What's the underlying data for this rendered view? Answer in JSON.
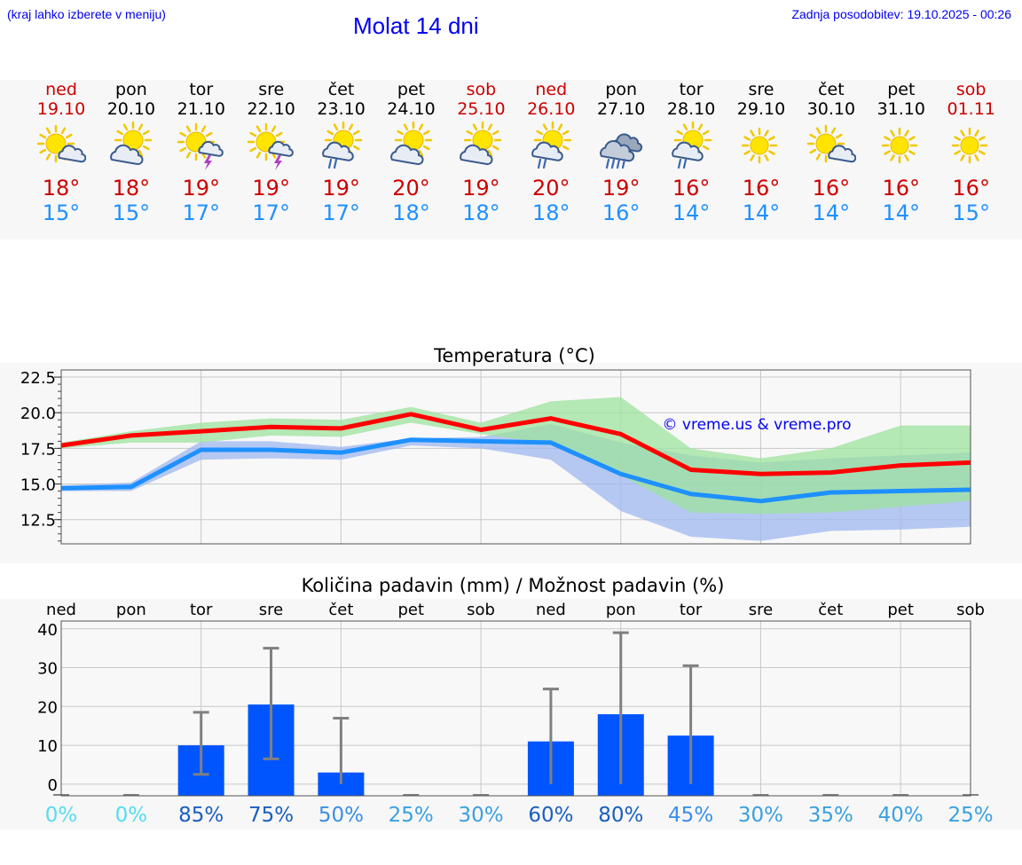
{
  "header": {
    "menu_hint": "(kraj lahko izberete v meniju)",
    "title": "Molat 14 dni",
    "last_update": "Zadnja posodobitev: 19.10.2025 - 00:26"
  },
  "colors": {
    "weekend": "#cc0000",
    "tmax": "#ff0000",
    "tmin": "#1e90ff",
    "precip_bar": "#0055ff",
    "band_green": "#9ee39e",
    "band_blue": "#9fb8f0"
  },
  "days": [
    {
      "name": "ned",
      "date": "19.10",
      "weekend": true,
      "icon": "sun-cloud-icon",
      "tmax": "18°",
      "tmin": "15°"
    },
    {
      "name": "pon",
      "date": "20.10",
      "weekend": false,
      "icon": "cloud-sun-icon",
      "tmax": "18°",
      "tmin": "15°"
    },
    {
      "name": "tor",
      "date": "21.10",
      "weekend": false,
      "icon": "sun-thunder-icon",
      "tmax": "19°",
      "tmin": "17°"
    },
    {
      "name": "sre",
      "date": "22.10",
      "weekend": false,
      "icon": "sun-thunder-icon",
      "tmax": "19°",
      "tmin": "17°"
    },
    {
      "name": "čet",
      "date": "23.10",
      "weekend": false,
      "icon": "sun-rain-icon",
      "tmax": "19°",
      "tmin": "17°"
    },
    {
      "name": "pet",
      "date": "24.10",
      "weekend": false,
      "icon": "cloud-sun-icon",
      "tmax": "20°",
      "tmin": "18°"
    },
    {
      "name": "sob",
      "date": "25.10",
      "weekend": true,
      "icon": "cloud-sun-icon",
      "tmax": "19°",
      "tmin": "18°"
    },
    {
      "name": "ned",
      "date": "26.10",
      "weekend": true,
      "icon": "sun-rain-icon",
      "tmax": "20°",
      "tmin": "18°"
    },
    {
      "name": "pon",
      "date": "27.10",
      "weekend": false,
      "icon": "heavy-rain-cloud-icon",
      "tmax": "19°",
      "tmin": "16°"
    },
    {
      "name": "tor",
      "date": "28.10",
      "weekend": false,
      "icon": "sun-rain-icon",
      "tmax": "16°",
      "tmin": "14°"
    },
    {
      "name": "sre",
      "date": "29.10",
      "weekend": false,
      "icon": "sun-icon",
      "tmax": "16°",
      "tmin": "14°"
    },
    {
      "name": "čet",
      "date": "30.10",
      "weekend": false,
      "icon": "sun-cloud-icon",
      "tmax": "16°",
      "tmin": "14°"
    },
    {
      "name": "pet",
      "date": "31.10",
      "weekend": false,
      "icon": "sun-icon",
      "tmax": "16°",
      "tmin": "14°"
    },
    {
      "name": "sob",
      "date": "01.11",
      "weekend": true,
      "icon": "sun-icon",
      "tmax": "16°",
      "tmin": "15°"
    }
  ],
  "chart_data": [
    {
      "type": "line",
      "title": "Temperatura (°C)",
      "watermark": "© vreme.us & vreme.pro",
      "ylim": [
        10.8,
        23.0
      ],
      "yticks": [
        12.5,
        15.0,
        17.5,
        20.0,
        22.5
      ],
      "ytick_labels": [
        "12.5",
        "15.0",
        "17.5",
        "20.0",
        "22.5"
      ],
      "x": [
        0,
        1,
        2,
        3,
        4,
        5,
        6,
        7,
        8,
        9,
        10,
        11,
        12,
        13
      ],
      "series": [
        {
          "name": "max",
          "values": [
            17.7,
            18.4,
            18.7,
            19.0,
            18.9,
            19.9,
            18.8,
            19.6,
            18.5,
            16.0,
            15.7,
            15.8,
            16.3,
            16.5
          ]
        },
        {
          "name": "min",
          "values": [
            14.7,
            14.8,
            17.4,
            17.4,
            17.2,
            18.1,
            18.0,
            17.9,
            15.7,
            14.3,
            13.8,
            14.4,
            14.5,
            14.6
          ]
        }
      ],
      "bands": [
        {
          "name": "max-range",
          "lower": [
            17.5,
            17.9,
            17.9,
            18.4,
            18.3,
            19.3,
            18.5,
            17.8,
            15.6,
            13.0,
            12.9,
            13.0,
            13.4,
            13.8
          ],
          "upper": [
            17.9,
            18.7,
            19.3,
            19.6,
            19.5,
            20.4,
            19.3,
            20.8,
            21.1,
            17.5,
            16.8,
            17.5,
            19.1,
            19.1
          ]
        },
        {
          "name": "min-range",
          "lower": [
            14.5,
            14.5,
            16.7,
            16.8,
            16.7,
            17.7,
            17.5,
            16.7,
            13.1,
            11.3,
            11.0,
            11.7,
            11.8,
            12.0
          ],
          "upper": [
            14.9,
            15.1,
            18.0,
            18.0,
            17.6,
            18.2,
            18.3,
            19.2,
            17.9,
            17.0,
            16.5,
            16.8,
            17.0,
            17.2
          ]
        }
      ]
    },
    {
      "type": "bar",
      "title": "Količina padavin (mm) / Možnost padavin (%)",
      "categories": [
        "ned",
        "pon",
        "tor",
        "sre",
        "čet",
        "pet",
        "sob",
        "ned",
        "pon",
        "tor",
        "sre",
        "čet",
        "pet",
        "sob"
      ],
      "values": [
        0,
        0,
        10,
        20.5,
        3,
        0,
        0,
        11,
        18,
        12.5,
        0,
        0,
        0,
        0
      ],
      "error_low": [
        0,
        0,
        2.5,
        6.5,
        0,
        0,
        0,
        0,
        0,
        0,
        0,
        0,
        0,
        0
      ],
      "error_high": [
        0,
        0,
        18.5,
        35,
        17,
        0,
        0,
        24.5,
        39,
        30.5,
        0,
        0,
        0,
        0
      ],
      "ylim": [
        -3,
        42
      ],
      "yticks": [
        0,
        10,
        20,
        30,
        40
      ],
      "ytick_labels": [
        "0",
        "10",
        "20",
        "30",
        "40"
      ],
      "probability": [
        "0%",
        "0%",
        "85%",
        "75%",
        "50%",
        "25%",
        "30%",
        "60%",
        "80%",
        "45%",
        "30%",
        "35%",
        "40%",
        "25%"
      ],
      "probability_colors": [
        "#55ddee",
        "#55ddee",
        "#1a5fbf",
        "#1a5fbf",
        "#3b8ee8",
        "#3aa0e0",
        "#3aa0e0",
        "#1a5fbf",
        "#1a5fbf",
        "#3b8ee8",
        "#3aa0e0",
        "#3aa0e0",
        "#3aa0e0",
        "#3aa0e0"
      ]
    }
  ]
}
